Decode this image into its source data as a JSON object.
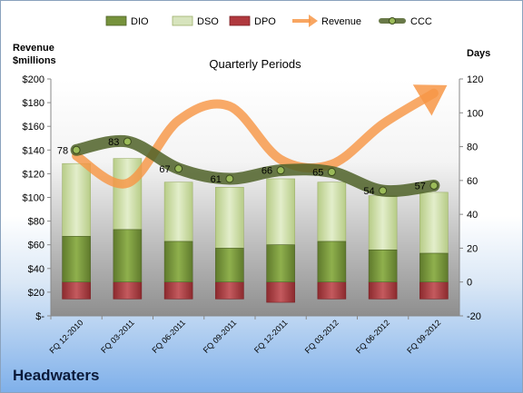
{
  "company": "Headwaters",
  "chart_data": {
    "type": "bar",
    "title": "Quarterly Periods",
    "categories": [
      "FQ 12-2010",
      "FQ 03-2011",
      "FQ 06-2011",
      "FQ 09-2011",
      "FQ 12-2011",
      "FQ 03-2012",
      "FQ 06-2012",
      "FQ 09-2012"
    ],
    "left_axis": {
      "label_line1": "Revenue",
      "label_line2": "$millions",
      "ylim": [
        0,
        200
      ],
      "ticks": [
        0,
        20,
        40,
        60,
        80,
        100,
        120,
        140,
        160,
        180,
        200
      ],
      "tick_labels": [
        "$-",
        "$20",
        "$40",
        "$60",
        "$80",
        "$100",
        "$120",
        "$140",
        "$160",
        "$180",
        "$200"
      ]
    },
    "right_axis": {
      "label": "Days",
      "ylim": [
        -20,
        120
      ],
      "ticks": [
        -20,
        0,
        20,
        40,
        60,
        80,
        100,
        120
      ],
      "tick_labels": [
        "-20",
        "0",
        "20",
        "40",
        "60",
        "80",
        "100",
        "120"
      ]
    },
    "series": [
      {
        "name": "DIO",
        "kind": "bar-stack",
        "color": "#76923c",
        "values": [
          27,
          31,
          24,
          20,
          22,
          24,
          19,
          17
        ]
      },
      {
        "name": "DSO",
        "kind": "bar-stack",
        "color": "#c9dd9b",
        "values": [
          43,
          42,
          35,
          36,
          39,
          35,
          32,
          36
        ]
      },
      {
        "name": "DPO",
        "kind": "bar-stack",
        "color": "#b0393e",
        "values": [
          -10,
          -10,
          -10,
          -10,
          -12,
          -10,
          -10,
          -10
        ]
      },
      {
        "name": "Revenue",
        "kind": "trend-arrow",
        "color": "#f79646",
        "values": [
          135,
          112,
          165,
          177,
          132,
          128,
          162,
          188
        ]
      },
      {
        "name": "CCC",
        "kind": "line",
        "color": "#4f6228",
        "values": [
          78,
          83,
          67,
          61,
          66,
          65,
          54,
          57
        ],
        "data_labels": [
          "78",
          "83",
          "67",
          "61",
          "66",
          "65",
          "54",
          "57"
        ]
      }
    ],
    "legend_position": "top",
    "grid": false
  }
}
